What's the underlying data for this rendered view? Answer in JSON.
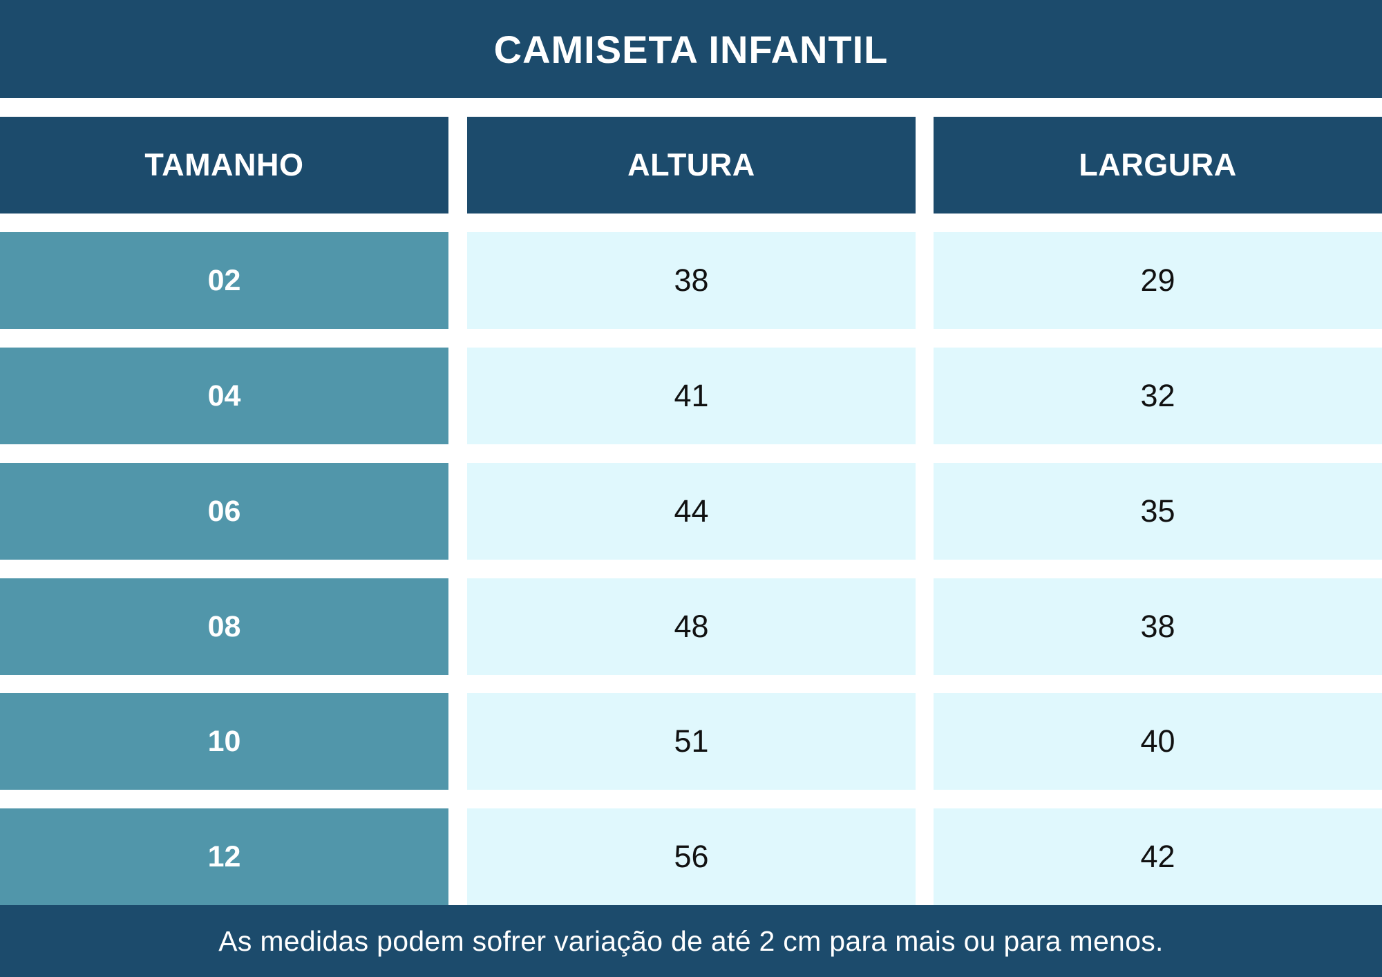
{
  "title": "CAMISETA INFANTIL",
  "table": {
    "headers": [
      "TAMANHO",
      "ALTURA",
      "LARGURA"
    ],
    "rows": [
      {
        "tamanho": "02",
        "altura": "38",
        "largura": "29"
      },
      {
        "tamanho": "04",
        "altura": "41",
        "largura": "32"
      },
      {
        "tamanho": "06",
        "altura": "44",
        "largura": "35"
      },
      {
        "tamanho": "08",
        "altura": "48",
        "largura": "38"
      },
      {
        "tamanho": "10",
        "altura": "51",
        "largura": "40"
      },
      {
        "tamanho": "12",
        "altura": "56",
        "largura": "42"
      }
    ]
  },
  "footer": "As medidas podem sofrer variação de até 2 cm para mais ou para menos.",
  "colors": {
    "header_navy": "#1c4b6c",
    "size_teal": "#5196aa",
    "value_light": "#e0f8fd"
  }
}
